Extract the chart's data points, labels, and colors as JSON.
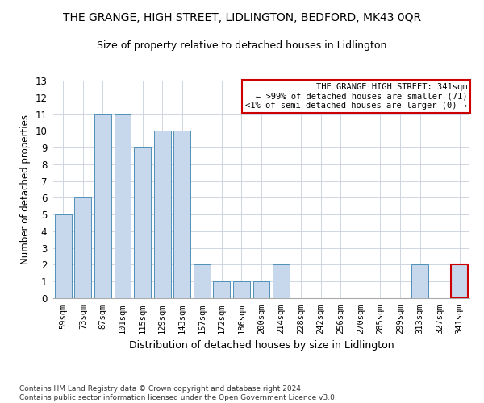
{
  "title": "THE GRANGE, HIGH STREET, LIDLINGTON, BEDFORD, MK43 0QR",
  "subtitle": "Size of property relative to detached houses in Lidlington",
  "xlabel": "Distribution of detached houses by size in Lidlington",
  "ylabel": "Number of detached properties",
  "categories": [
    "59sqm",
    "73sqm",
    "87sqm",
    "101sqm",
    "115sqm",
    "129sqm",
    "143sqm",
    "157sqm",
    "172sqm",
    "186sqm",
    "200sqm",
    "214sqm",
    "228sqm",
    "242sqm",
    "256sqm",
    "270sqm",
    "285sqm",
    "299sqm",
    "313sqm",
    "327sqm",
    "341sqm"
  ],
  "values": [
    5,
    6,
    11,
    11,
    9,
    10,
    10,
    2,
    1,
    1,
    1,
    2,
    0,
    0,
    0,
    0,
    0,
    0,
    2,
    0,
    2
  ],
  "bar_color": "#c8d8ec",
  "bar_edge_color": "#5090b8",
  "highlight_bar_index": 20,
  "highlight_bar_color": "#c8d8ec",
  "highlight_bar_edge_color": "#cc0000",
  "ylim": [
    0,
    13
  ],
  "yticks": [
    0,
    1,
    2,
    3,
    4,
    5,
    6,
    7,
    8,
    9,
    10,
    11,
    12,
    13
  ],
  "annotation_text": "THE GRANGE HIGH STREET: 341sqm\n← >99% of detached houses are smaller (71)\n<1% of semi-detached houses are larger (0) →",
  "annotation_box_color": "#ffffff",
  "annotation_box_edge_color": "#cc0000",
  "footer_line1": "Contains HM Land Registry data © Crown copyright and database right 2024.",
  "footer_line2": "Contains public sector information licensed under the Open Government Licence v3.0.",
  "grid_color": "#c8d0dc",
  "background_color": "#ffffff",
  "title_fontsize": 10,
  "subtitle_fontsize": 9,
  "xlabel_fontsize": 9,
  "ylabel_fontsize": 8.5,
  "tick_fontsize": 7.5,
  "annotation_fontsize": 7.5,
  "footer_fontsize": 6.5
}
